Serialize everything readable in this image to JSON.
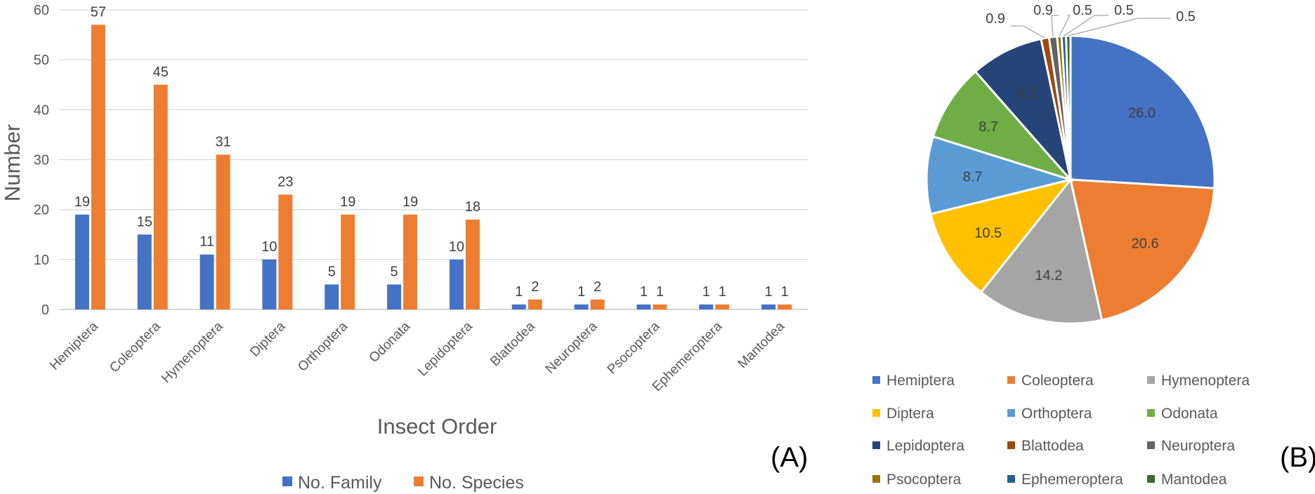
{
  "panels": {
    "a_label": "(A)",
    "b_label": "(B)"
  },
  "chart_data": [
    {
      "type": "bar",
      "title": "",
      "xlabel": "Insect Order",
      "ylabel": "Number",
      "ylim": [
        0,
        60
      ],
      "yticks": [
        0,
        10,
        20,
        30,
        40,
        50,
        60
      ],
      "grid": true,
      "legend_position": "bottom",
      "categories": [
        "Hemiptera",
        "Coleoptera",
        "Hymenoptera",
        "Diptera",
        "Orthoptera",
        "Odonata",
        "Lepidoptera",
        "Blattodea",
        "Neuroptera",
        "Psocoptera",
        "Ephemeroptera",
        "Mantodea"
      ],
      "series": [
        {
          "name": "No. Family",
          "color": "#4472C4",
          "values": [
            19,
            15,
            11,
            10,
            5,
            5,
            10,
            1,
            1,
            1,
            1,
            1
          ]
        },
        {
          "name": "No. Species",
          "color": "#ED7D31",
          "values": [
            57,
            45,
            31,
            23,
            19,
            19,
            18,
            2,
            2,
            1,
            1,
            1
          ]
        }
      ]
    },
    {
      "type": "pie",
      "title": "",
      "legend_position": "bottom",
      "slices": [
        {
          "label": "Hemiptera",
          "value": 26.0,
          "display": "26.0",
          "color": "#4472C4"
        },
        {
          "label": "Coleoptera",
          "value": 20.6,
          "display": "20.6",
          "color": "#ED7D31"
        },
        {
          "label": "Hymenoptera",
          "value": 14.2,
          "display": "14.2",
          "color": "#A5A5A5"
        },
        {
          "label": "Diptera",
          "value": 10.5,
          "display": "10.5",
          "color": "#FFC000"
        },
        {
          "label": "Orthoptera",
          "value": 8.7,
          "display": "8.7",
          "color": "#5B9BD5"
        },
        {
          "label": "Odonata",
          "value": 8.7,
          "display": "8.7",
          "color": "#70AD47"
        },
        {
          "label": "Lepidoptera",
          "value": 8.2,
          "display": "8.2",
          "color": "#264478"
        },
        {
          "label": "Blattodea",
          "value": 0.9,
          "display": "0.9",
          "color": "#9E480E"
        },
        {
          "label": "Neuroptera",
          "value": 0.9,
          "display": "0.9",
          "color": "#636363"
        },
        {
          "label": "Psocoptera",
          "value": 0.5,
          "display": "0.5",
          "color": "#997300"
        },
        {
          "label": "Ephemeroptera",
          "value": 0.5,
          "display": "0.5",
          "color": "#255E91"
        },
        {
          "label": "Mantodea",
          "value": 0.5,
          "display": "0.5",
          "color": "#43682B"
        }
      ]
    }
  ]
}
